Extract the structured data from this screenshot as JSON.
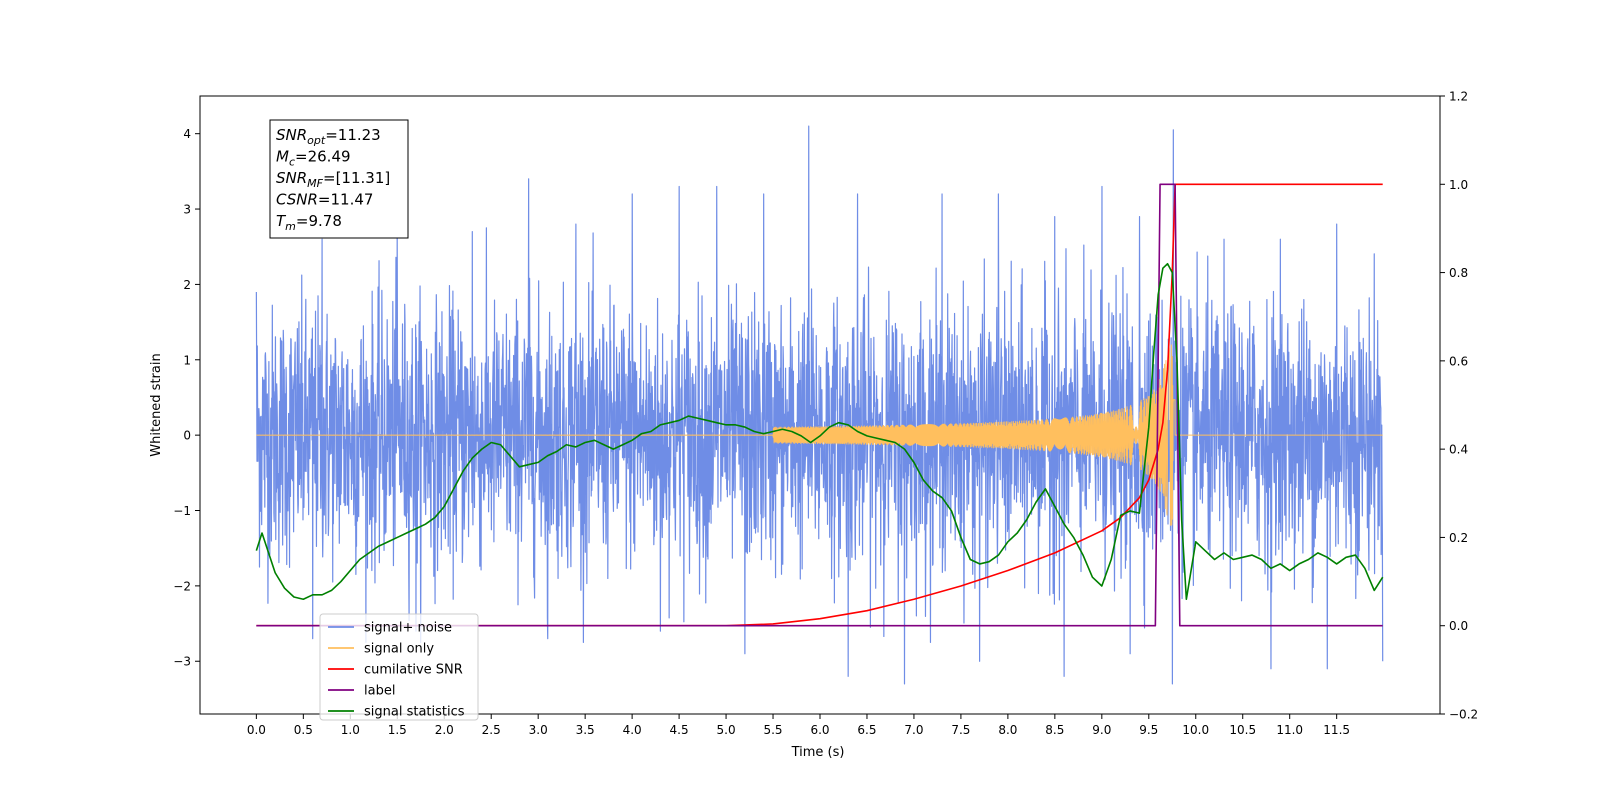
{
  "chart_data": {
    "type": "line",
    "xlabel": "Time (s)",
    "ylabel": "Whitened strain",
    "x_ticks": [
      "0.0",
      "0.5",
      "1.0",
      "1.5",
      "2.0",
      "2.5",
      "3.0",
      "3.5",
      "4.0",
      "4.5",
      "5.0",
      "5.5",
      "6.0",
      "6.5",
      "7.0",
      "7.5",
      "8.0",
      "8.5",
      "9.0",
      "9.5",
      "10.0",
      "10.5",
      "11.0",
      "11.5"
    ],
    "xlim": [
      -0.6,
      12.6
    ],
    "ylim_left": [
      -3.7,
      4.5
    ],
    "y_ticks_left": [
      "4",
      "3",
      "2",
      "1",
      "0",
      "−1",
      "−2",
      "−3"
    ],
    "ylim_right": [
      -0.2,
      1.2
    ],
    "y_ticks_right": [
      "1.2",
      "1.0",
      "0.8",
      "0.6",
      "0.4",
      "0.2",
      "0.0",
      "−0.2"
    ],
    "grid": false,
    "legend": {
      "placement": "lower-left",
      "entries": [
        {
          "label": "signal+ noise",
          "color": "#6f8de6"
        },
        {
          "label": "signal only",
          "color": "#ffbf5e"
        },
        {
          "label": "cumilative SNR",
          "color": "#ff0000"
        },
        {
          "label": "label",
          "color": "#800080"
        },
        {
          "label": "signal statistics",
          "color": "#008000"
        }
      ]
    },
    "annotation": {
      "lines": [
        {
          "name": "SNR",
          "sub": "opt",
          "value": "=11.23"
        },
        {
          "name": "M",
          "sub": "c",
          "value": "=26.49"
        },
        {
          "name": "SNR",
          "sub": "MF",
          "value": "=[11.31]"
        },
        {
          "name": "CSNR",
          "sub": "",
          "value": "=11.47"
        },
        {
          "name": "T",
          "sub": "m",
          "value": "=9.78"
        }
      ]
    },
    "series": [
      {
        "name": "signal+ noise",
        "axis": "left",
        "color": "#6f8de6",
        "x_range": [
          0.0,
          11.99
        ],
        "noise_std": 0.85,
        "peaks": [
          [
            0.0,
            1.9
          ],
          [
            0.7,
            2.6
          ],
          [
            1.5,
            2.7
          ],
          [
            2.3,
            2.7
          ],
          [
            2.9,
            3.4
          ],
          [
            3.4,
            2.8
          ],
          [
            4.0,
            3.2
          ],
          [
            4.5,
            3.3
          ],
          [
            4.9,
            3.3
          ],
          [
            5.4,
            3.2
          ],
          [
            5.88,
            4.1
          ],
          [
            6.4,
            3.2
          ],
          [
            6.9,
            2.9
          ],
          [
            7.3,
            3.2
          ],
          [
            7.9,
            3.2
          ],
          [
            8.5,
            2.9
          ],
          [
            9.0,
            3.3
          ],
          [
            9.4,
            2.9
          ],
          [
            9.76,
            4.05
          ],
          [
            10.3,
            2.6
          ],
          [
            10.9,
            2.6
          ],
          [
            11.5,
            2.8
          ],
          [
            11.99,
            2.85
          ]
        ],
        "troughs": [
          [
            0.6,
            -2.7
          ],
          [
            1.7,
            -2.6
          ],
          [
            3.1,
            -2.7
          ],
          [
            4.3,
            -2.6
          ],
          [
            5.2,
            -2.9
          ],
          [
            6.3,
            -3.2
          ],
          [
            6.9,
            -3.3
          ],
          [
            7.7,
            -3.0
          ],
          [
            8.6,
            -3.2
          ],
          [
            9.3,
            -2.9
          ],
          [
            9.75,
            -3.3
          ],
          [
            10.8,
            -3.1
          ],
          [
            11.4,
            -3.1
          ],
          [
            11.99,
            -3.0
          ]
        ]
      },
      {
        "name": "signal only",
        "axis": "left",
        "color": "#ffbf5e",
        "x_range": [
          0.0,
          11.99
        ],
        "chirp_end": 9.78,
        "amplitude_max": 1.2
      },
      {
        "name": "cumilative SNR",
        "axis": "right",
        "color": "#ff0000",
        "x": [
          0.0,
          5.0,
          5.5,
          6.0,
          6.5,
          7.0,
          7.5,
          8.0,
          8.5,
          9.0,
          9.2,
          9.4,
          9.5,
          9.6,
          9.65,
          9.7,
          9.75,
          9.78,
          11.99
        ],
        "y": [
          0.0,
          0.0,
          0.004,
          0.016,
          0.034,
          0.06,
          0.09,
          0.125,
          0.165,
          0.215,
          0.245,
          0.29,
          0.33,
          0.4,
          0.46,
          0.58,
          0.8,
          1.0,
          1.0
        ]
      },
      {
        "name": "label",
        "axis": "right",
        "color": "#800080",
        "x": [
          0.0,
          9.57,
          9.62,
          9.78,
          9.83,
          11.99
        ],
        "y": [
          0.0,
          0.0,
          1.0,
          1.0,
          0.0,
          0.0
        ]
      },
      {
        "name": "signal statistics",
        "axis": "right",
        "color": "#008000",
        "x": [
          0.0,
          0.06,
          0.2,
          0.3,
          0.4,
          0.5,
          0.6,
          0.7,
          0.8,
          0.9,
          1.0,
          1.1,
          1.2,
          1.3,
          1.4,
          1.5,
          1.6,
          1.7,
          1.8,
          1.9,
          2.0,
          2.1,
          2.2,
          2.3,
          2.4,
          2.5,
          2.6,
          2.7,
          2.8,
          2.9,
          3.0,
          3.1,
          3.2,
          3.3,
          3.4,
          3.5,
          3.6,
          3.7,
          3.8,
          3.9,
          4.0,
          4.1,
          4.2,
          4.3,
          4.4,
          4.5,
          4.6,
          4.7,
          4.8,
          4.9,
          5.0,
          5.1,
          5.2,
          5.3,
          5.4,
          5.5,
          5.6,
          5.7,
          5.8,
          5.9,
          6.0,
          6.1,
          6.2,
          6.3,
          6.4,
          6.5,
          6.6,
          6.7,
          6.8,
          6.9,
          7.0,
          7.1,
          7.2,
          7.3,
          7.4,
          7.5,
          7.6,
          7.7,
          7.8,
          7.9,
          8.0,
          8.1,
          8.2,
          8.3,
          8.4,
          8.5,
          8.6,
          8.7,
          8.8,
          8.9,
          9.0,
          9.1,
          9.2,
          9.3,
          9.4,
          9.5,
          9.55,
          9.6,
          9.65,
          9.7,
          9.75,
          9.8,
          9.85,
          9.9,
          10.0,
          10.1,
          10.2,
          10.3,
          10.4,
          10.5,
          10.6,
          10.7,
          10.8,
          10.9,
          11.0,
          11.1,
          11.2,
          11.3,
          11.4,
          11.5,
          11.6,
          11.7,
          11.8,
          11.9,
          11.99
        ],
        "y": [
          0.17,
          0.21,
          0.12,
          0.085,
          0.065,
          0.06,
          0.07,
          0.07,
          0.08,
          0.1,
          0.125,
          0.15,
          0.165,
          0.18,
          0.19,
          0.2,
          0.21,
          0.22,
          0.23,
          0.245,
          0.27,
          0.31,
          0.35,
          0.38,
          0.4,
          0.415,
          0.41,
          0.385,
          0.36,
          0.365,
          0.37,
          0.385,
          0.395,
          0.41,
          0.405,
          0.415,
          0.42,
          0.41,
          0.4,
          0.41,
          0.42,
          0.435,
          0.44,
          0.455,
          0.46,
          0.465,
          0.475,
          0.47,
          0.465,
          0.46,
          0.455,
          0.455,
          0.45,
          0.44,
          0.435,
          0.44,
          0.445,
          0.44,
          0.43,
          0.415,
          0.43,
          0.45,
          0.46,
          0.455,
          0.44,
          0.43,
          0.425,
          0.42,
          0.415,
          0.4,
          0.37,
          0.33,
          0.305,
          0.29,
          0.26,
          0.2,
          0.15,
          0.14,
          0.145,
          0.16,
          0.19,
          0.21,
          0.24,
          0.28,
          0.31,
          0.27,
          0.23,
          0.2,
          0.16,
          0.11,
          0.09,
          0.15,
          0.25,
          0.26,
          0.255,
          0.45,
          0.61,
          0.75,
          0.81,
          0.82,
          0.8,
          0.6,
          0.24,
          0.06,
          0.19,
          0.17,
          0.15,
          0.165,
          0.15,
          0.155,
          0.16,
          0.15,
          0.13,
          0.14,
          0.125,
          0.14,
          0.15,
          0.165,
          0.155,
          0.14,
          0.155,
          0.16,
          0.13,
          0.08,
          0.11
        ]
      }
    ]
  }
}
